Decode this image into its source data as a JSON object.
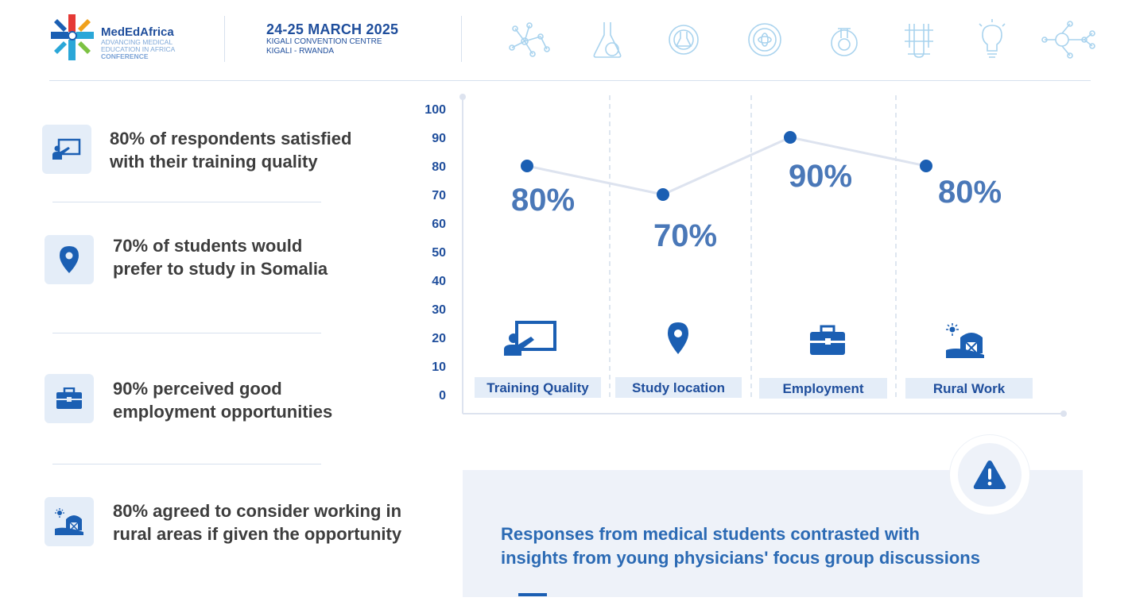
{
  "header": {
    "logo_name": "MedEdAfrica",
    "logo_tagline_1": "ADVANCING MEDICAL",
    "logo_tagline_2": "EDUCATION IN AFRICA",
    "logo_tagline_3": "CONFERENCE",
    "event_date": "24-25 MARCH 2025",
    "event_venue": "KIGALI CONVENTION CENTRE",
    "event_city": "KIGALI - RWANDA",
    "icons": [
      "molecule-icon",
      "flask-icon",
      "gear-flask-icon",
      "atom-icon",
      "tube-gear-icon",
      "test-tubes-icon",
      "lightbulb-icon",
      "molecule-network-icon"
    ]
  },
  "stats": [
    {
      "icon": "presentation-board-icon",
      "line1": "80% of respondents satisfied",
      "line2": "with their training quality"
    },
    {
      "icon": "location-pin-icon",
      "line1": "70% of students would",
      "line2": "prefer to study in Somalia"
    },
    {
      "icon": "briefcase-icon",
      "line1": "90% perceived good",
      "line2": "employment opportunities"
    },
    {
      "icon": "farm-barn-icon",
      "line1": "80% agreed to consider working in",
      "line2": "rural areas if given the opportunity"
    }
  ],
  "chart_data": {
    "type": "line",
    "title": "",
    "xlabel": "",
    "ylabel": "",
    "ylim": [
      0,
      100
    ],
    "yticks": [
      0,
      10,
      20,
      30,
      40,
      50,
      60,
      70,
      80,
      90,
      100
    ],
    "categories": [
      "Training Quality",
      "Study location",
      "Employment",
      "Rural Work"
    ],
    "values": [
      80,
      70,
      90,
      80
    ],
    "data_labels": [
      "80%",
      "70%",
      "90%",
      "80%"
    ],
    "category_icons": [
      "presentation-board-icon",
      "location-pin-icon",
      "briefcase-icon",
      "farm-barn-icon"
    ],
    "grid": false,
    "colors": {
      "line": "#dde3ef",
      "point": "#1b5fb3",
      "label": "#4a78b8",
      "axis_text": "#1f4e9c"
    }
  },
  "info": {
    "line1": "Responses from medical students contrasted with",
    "line2": "insights from young physicians' focus group discussions",
    "icon": "warning-icon"
  },
  "colors": {
    "brand_dark": "#1f4e9c",
    "brand_accent": "#1b5fb3",
    "panel_bg": "#eef2f9",
    "icon_bg": "#e4edf8"
  }
}
